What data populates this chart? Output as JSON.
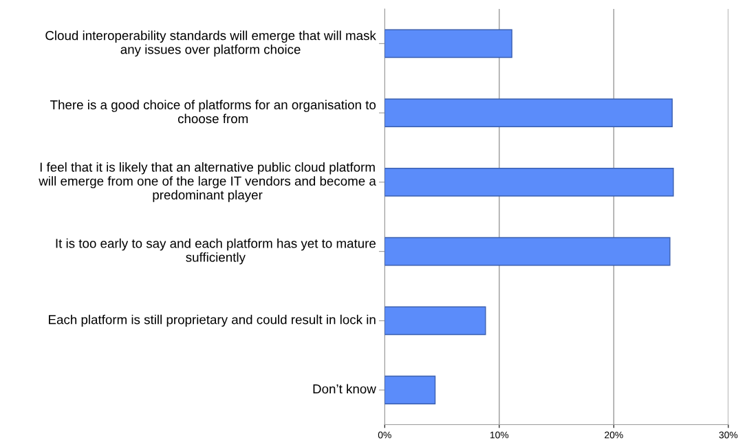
{
  "chart_data": {
    "type": "bar",
    "orientation": "horizontal",
    "categories": [
      "Cloud interoperability standards will emerge that will mask any issues over platform choice",
      "There is a good choice of platforms for an organisation to choose from",
      "I feel that it is likely that an alternative public cloud platform will emerge from one of the large IT vendors and become a predominant player",
      "It is too early to say and each platform has yet to mature sufficiently",
      "Each platform is still proprietary and could result in lock in",
      "Don’t know"
    ],
    "values": [
      11.1,
      25.1,
      25.2,
      24.9,
      8.8,
      4.4
    ],
    "color": "#5b8cfa",
    "xlim": [
      0,
      30
    ],
    "xticks": [
      {
        "value": 0,
        "label": "0%"
      },
      {
        "value": 10,
        "label": "10%"
      },
      {
        "value": 20,
        "label": "20%"
      },
      {
        "value": 30,
        "label": "30%"
      }
    ],
    "grid": "x"
  }
}
